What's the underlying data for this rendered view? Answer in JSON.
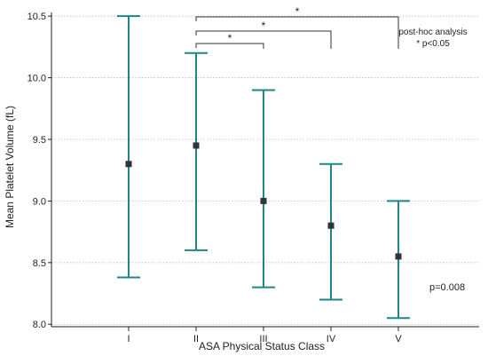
{
  "chart_data": {
    "type": "error-bar",
    "xlabel": "ASA Physical Status Class",
    "ylabel": "Mean Platelet Volume (fL)",
    "categories": [
      "I",
      "II",
      "III",
      "IV",
      "V"
    ],
    "mean": [
      9.3,
      9.45,
      9.0,
      8.8,
      8.55
    ],
    "lower": [
      8.38,
      8.6,
      8.3,
      8.2,
      8.05
    ],
    "upper": [
      10.5,
      10.2,
      9.9,
      9.3,
      9.0
    ],
    "ylim": [
      7.98,
      10.53
    ],
    "yticks": [
      "8.0",
      "8.5",
      "9.0",
      "9.5",
      "10.0",
      "10.5"
    ],
    "grid": "horizontal-dotted",
    "colors": {
      "bar": "#1f8585",
      "marker": "#333333",
      "grid": "#bbbbbb",
      "axis": "#222222"
    },
    "significance": [
      {
        "from": "II",
        "to": "III",
        "label": "*"
      },
      {
        "from": "II",
        "to": "IV",
        "label": "*"
      },
      {
        "from": "II",
        "to": "V",
        "label": "*"
      }
    ],
    "annotations": {
      "posthoc_title": "post-hoc analysis",
      "posthoc_note": "* p<0.05",
      "pvalue": "p=0.008"
    }
  }
}
